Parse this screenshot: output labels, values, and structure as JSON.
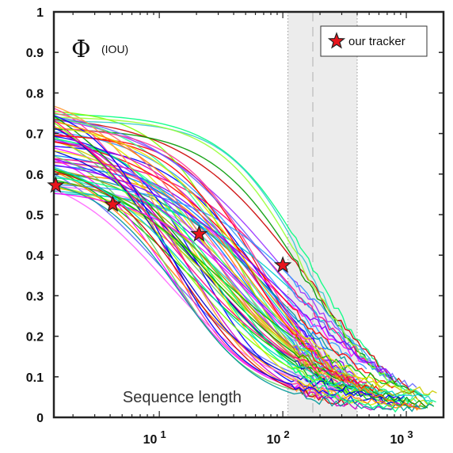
{
  "chart_data": {
    "type": "line",
    "xscale": "log",
    "xlim": [
      1.4,
      2000
    ],
    "ylim": [
      0,
      1
    ],
    "yticks": [
      "0",
      "0.1",
      "0.2",
      "0.3",
      "0.4",
      "0.5",
      "0.6",
      "0.7",
      "0.8",
      "0.9",
      "1"
    ],
    "xticks": [
      {
        "value": 10,
        "base": "10",
        "exp": "1"
      },
      {
        "value": 100,
        "base": "10",
        "exp": "2"
      },
      {
        "value": 1000,
        "base": "10",
        "exp": "3"
      }
    ],
    "xlabel": "Sequence length",
    "symbol": "Φ",
    "metric": "(IOU)",
    "shaded_region": {
      "from": 110,
      "to": 400,
      "line_at": 175,
      "color": "#ececec"
    },
    "legend": {
      "label": "our tracker",
      "placement": "top-right",
      "marker": "star",
      "color": "#e8141c"
    },
    "highlighted_series": {
      "name": "our tracker",
      "points": [
        {
          "x": 1.45,
          "y": 0.572
        },
        {
          "x": 4.2,
          "y": 0.525
        },
        {
          "x": 21,
          "y": 0.452
        },
        {
          "x": 100,
          "y": 0.375
        }
      ]
    },
    "background_series": {
      "count": 70,
      "description_of_curves": "many trackers, IoU decreasing with sequence length",
      "start_range": [
        0.55,
        0.77
      ],
      "end_range": [
        0.01,
        0.06
      ]
    }
  }
}
